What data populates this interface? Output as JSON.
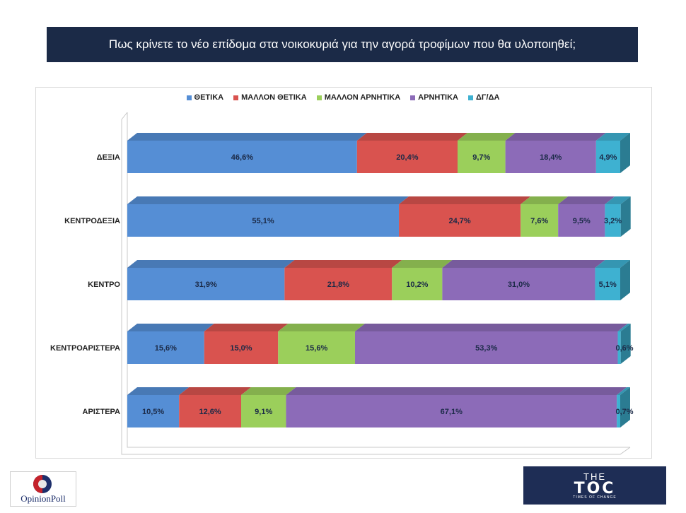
{
  "title": "Πως κρίνετε το νέο επίδομα στα νοικοκυριά για την αγορά τροφίμων που θα υλοποιηθεί;",
  "chart_data": {
    "type": "bar",
    "orientation": "horizontal",
    "stacked": "100%",
    "categories": [
      "ΔΕΞΙΑ",
      "ΚΕΝΤΡΟΔΕΞΙΑ",
      "ΚΕΝΤΡΟ",
      "ΚΕΝΤΡΟΑΡΙΣΤΕΡΑ",
      "ΑΡΙΣΤΕΡΑ"
    ],
    "series": [
      {
        "name": "ΘΕΤΙΚΑ",
        "color": "#558ed5",
        "values": [
          46.6,
          55.1,
          31.9,
          15.6,
          10.5
        ],
        "labels": [
          "46,6%",
          "55,1%",
          "31,9%",
          "15,6%",
          "10,5%"
        ]
      },
      {
        "name": "ΜΑΛΛΟΝ ΘΕΤΙΚΑ",
        "color": "#d9534f",
        "values": [
          20.4,
          24.7,
          21.8,
          15.0,
          12.6
        ],
        "labels": [
          "20,4%",
          "24,7%",
          "21,8%",
          "15,0%",
          "12,6%"
        ]
      },
      {
        "name": "ΜΑΛΛΟΝ ΑΡΝΗΤΙΚΑ",
        "color": "#9bcf5b",
        "values": [
          9.7,
          7.6,
          10.2,
          15.6,
          9.1
        ],
        "labels": [
          "9,7%",
          "7,6%",
          "10,2%",
          "15,6%",
          "9,1%"
        ]
      },
      {
        "name": "ΑΡΝΗΤΙΚΑ",
        "color": "#8c6bb8",
        "values": [
          18.4,
          9.5,
          31.0,
          53.3,
          67.1
        ],
        "labels": [
          "18,4%",
          "9,5%",
          "31,0%",
          "53,3%",
          "67,1%"
        ]
      },
      {
        "name": "ΔΓ/ΔΑ",
        "color": "#3eb1d1",
        "values": [
          4.9,
          3.2,
          5.1,
          0.6,
          0.7
        ],
        "labels": [
          "4,9%",
          "3,2%",
          "5,1%",
          "0,6%",
          "0,7%"
        ]
      }
    ],
    "legend_position": "top-center",
    "grid": false
  },
  "logos": {
    "left_text": "OpinionPoll",
    "right_top": "THE",
    "right_main": "TOC",
    "right_tag": "TIMES OF CHANGE"
  }
}
